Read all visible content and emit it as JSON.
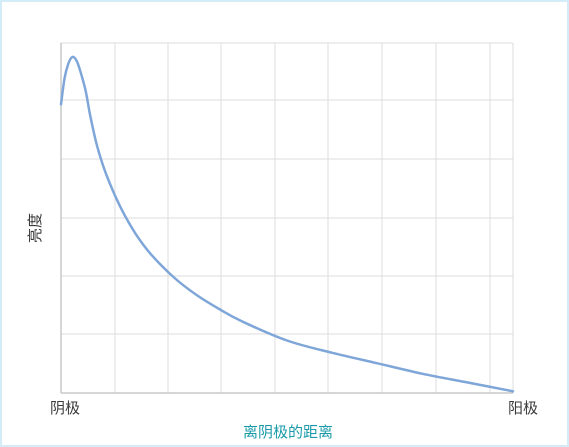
{
  "chart_data": {
    "type": "line",
    "title": "",
    "xlabel": "离阴极的距离",
    "ylabel": "亮度",
    "x_tick_labels": {
      "left": "阴极",
      "right": "阳极"
    },
    "grid": true,
    "legend": "none",
    "xlim": [
      0,
      1
    ],
    "ylim": [
      0,
      1
    ],
    "series": [
      {
        "x": [
          0,
          0.008,
          0.016,
          0.025,
          0.035,
          0.045,
          0.055,
          0.065,
          0.08,
          0.1,
          0.13,
          0.165,
          0.2,
          0.25,
          0.3,
          0.35,
          0.4,
          0.5,
          0.6,
          0.7,
          0.8,
          0.9,
          1.0
        ],
        "values": [
          0.825,
          0.9,
          0.94,
          0.96,
          0.948,
          0.91,
          0.86,
          0.79,
          0.705,
          0.625,
          0.535,
          0.455,
          0.395,
          0.33,
          0.28,
          0.24,
          0.205,
          0.15,
          0.115,
          0.085,
          0.055,
          0.03,
          0.005
        ],
        "color": "#7fa6d8"
      }
    ],
    "colors": {
      "grid": "#dcdcdc",
      "axis": "#c8c8c8",
      "line": "#7fa6d8",
      "xlabel": "#1a9aa8"
    }
  }
}
